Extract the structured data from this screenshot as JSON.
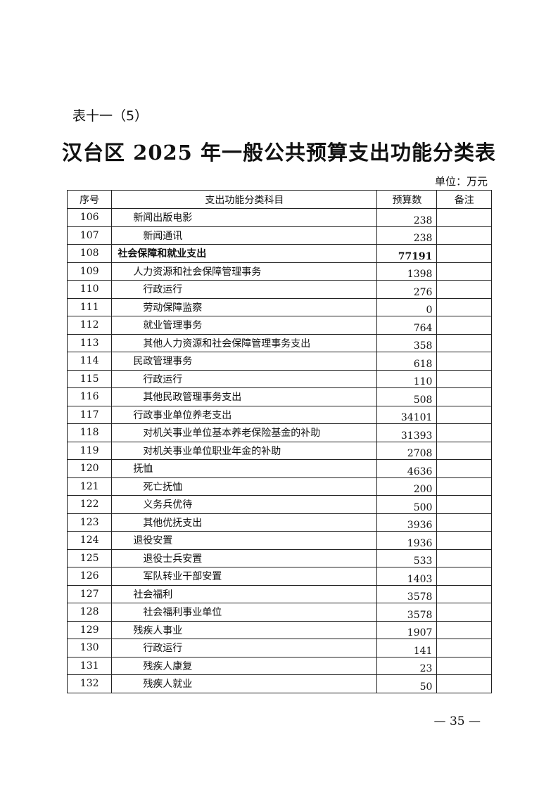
{
  "subtitle": "表十一（5）",
  "title": "汉台区 2025 年一般公共预算支出功能分类表",
  "unit": "单位：万元",
  "table": {
    "headers": [
      "序号",
      "支出功能分类科目",
      "预算数",
      "备注"
    ],
    "rows": [
      {
        "seq": "106",
        "name": "新闻出版电影",
        "amount": "238",
        "level": 1
      },
      {
        "seq": "107",
        "name": "新闻通讯",
        "amount": "238",
        "level": 2
      },
      {
        "seq": "108",
        "name": "社会保障和就业支出",
        "amount": "77191",
        "level": 0
      },
      {
        "seq": "109",
        "name": "人力资源和社会保障管理事务",
        "amount": "1398",
        "level": 1
      },
      {
        "seq": "110",
        "name": "行政运行",
        "amount": "276",
        "level": 2
      },
      {
        "seq": "111",
        "name": "劳动保障监察",
        "amount": "0",
        "level": 2
      },
      {
        "seq": "112",
        "name": "就业管理事务",
        "amount": "764",
        "level": 2
      },
      {
        "seq": "113",
        "name": "其他人力资源和社会保障管理事务支出",
        "amount": "358",
        "level": 2
      },
      {
        "seq": "114",
        "name": "民政管理事务",
        "amount": "618",
        "level": 1
      },
      {
        "seq": "115",
        "name": "行政运行",
        "amount": "110",
        "level": 2
      },
      {
        "seq": "116",
        "name": "其他民政管理事务支出",
        "amount": "508",
        "level": 2
      },
      {
        "seq": "117",
        "name": "行政事业单位养老支出",
        "amount": "34101",
        "level": 1
      },
      {
        "seq": "118",
        "name": "对机关事业单位基本养老保险基金的补助",
        "amount": "31393",
        "level": 2
      },
      {
        "seq": "119",
        "name": "对机关事业单位职业年金的补助",
        "amount": "2708",
        "level": 2
      },
      {
        "seq": "120",
        "name": "抚恤",
        "amount": "4636",
        "level": 1
      },
      {
        "seq": "121",
        "name": "死亡抚恤",
        "amount": "200",
        "level": 2
      },
      {
        "seq": "122",
        "name": "义务兵优待",
        "amount": "500",
        "level": 2
      },
      {
        "seq": "123",
        "name": "其他优抚支出",
        "amount": "3936",
        "level": 2
      },
      {
        "seq": "124",
        "name": "退役安置",
        "amount": "1936",
        "level": 1
      },
      {
        "seq": "125",
        "name": "退役士兵安置",
        "amount": "533",
        "level": 2
      },
      {
        "seq": "126",
        "name": "军队转业干部安置",
        "amount": "1403",
        "level": 2
      },
      {
        "seq": "127",
        "name": "社会福利",
        "amount": "3578",
        "level": 1
      },
      {
        "seq": "128",
        "name": "社会福利事业单位",
        "amount": "3578",
        "level": 2
      },
      {
        "seq": "129",
        "name": "残疾人事业",
        "amount": "1907",
        "level": 1
      },
      {
        "seq": "130",
        "name": "行政运行",
        "amount": "141",
        "level": 2
      },
      {
        "seq": "131",
        "name": "残疾人康复",
        "amount": "23",
        "level": 2
      },
      {
        "seq": "132",
        "name": "残疾人就业",
        "amount": "50",
        "level": 2
      }
    ]
  },
  "page_number": "— 35 —"
}
